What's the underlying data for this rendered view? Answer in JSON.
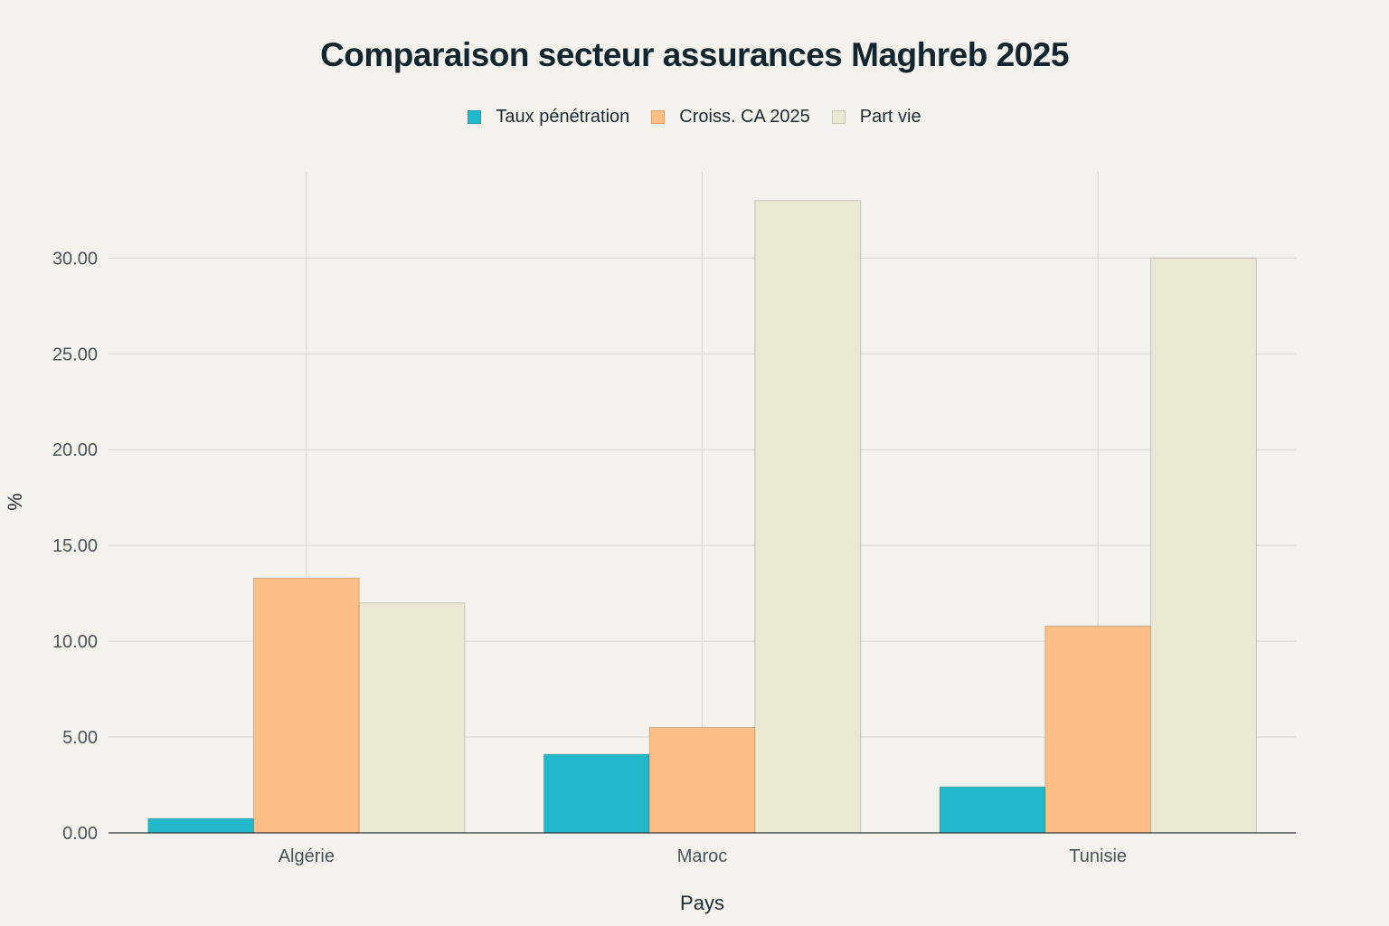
{
  "chart_data": {
    "type": "bar",
    "title": "Comparaison secteur assurances Maghreb 2025",
    "xlabel": "Pays",
    "ylabel": "%",
    "categories": [
      "Algérie",
      "Maroc",
      "Tunisie"
    ],
    "series": [
      {
        "name": "Taux pénétration",
        "values": [
          0.75,
          4.1,
          2.4
        ],
        "color": "#21b8cc"
      },
      {
        "name": "Croiss. CA 2025",
        "values": [
          13.3,
          5.5,
          10.8
        ],
        "color": "#fdbf85"
      },
      {
        "name": "Part vie",
        "values": [
          12.0,
          33.0,
          30.0
        ],
        "color": "#ebe8d4"
      }
    ],
    "ylim": [
      0,
      34.5
    ],
    "yticks": [
      "0.00",
      "5.00",
      "10.00",
      "15.00",
      "20.00",
      "25.00",
      "30.00"
    ],
    "grid": true,
    "legend_position": "top-center"
  }
}
